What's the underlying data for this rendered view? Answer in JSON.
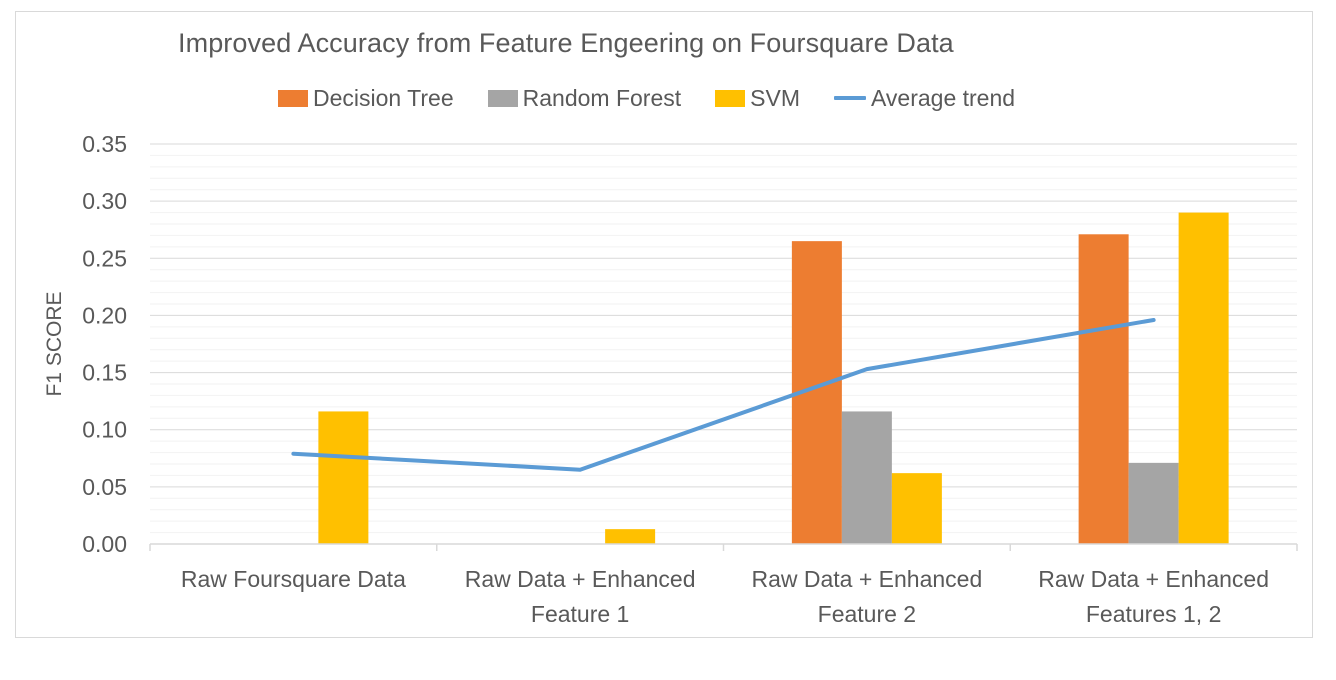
{
  "chart_data": {
    "type": "bar",
    "title": "Improved Accuracy from Feature Engeering on Foursquare Data",
    "xlabel": "",
    "ylabel": "F1 SCORE",
    "ylim": [
      0,
      0.35
    ],
    "yticks": [
      "0.00",
      "0.05",
      "0.10",
      "0.15",
      "0.20",
      "0.25",
      "0.30",
      "0.35"
    ],
    "grid": true,
    "legend_position": "top",
    "categories": [
      [
        "Raw Foursquare Data"
      ],
      [
        "Raw Data + Enhanced",
        "Feature 1"
      ],
      [
        "Raw Data + Enhanced",
        "Feature 2"
      ],
      [
        "Raw Data + Enhanced",
        "Features 1, 2"
      ]
    ],
    "series": [
      {
        "name": "Decision Tree",
        "type": "bar",
        "color": "#ed7d31",
        "values": [
          0,
          0,
          0.265,
          0.271
        ]
      },
      {
        "name": "Random Forest",
        "type": "bar",
        "color": "#a5a5a5",
        "values": [
          0,
          0,
          0.116,
          0.071
        ]
      },
      {
        "name": "SVM",
        "type": "bar",
        "color": "#ffc000",
        "values": [
          0.116,
          0.013,
          0.062,
          0.29
        ]
      },
      {
        "name": "Average trend",
        "type": "line",
        "color": "#5b9bd5",
        "values": [
          0.079,
          0.065,
          0.153,
          0.196
        ]
      }
    ]
  }
}
